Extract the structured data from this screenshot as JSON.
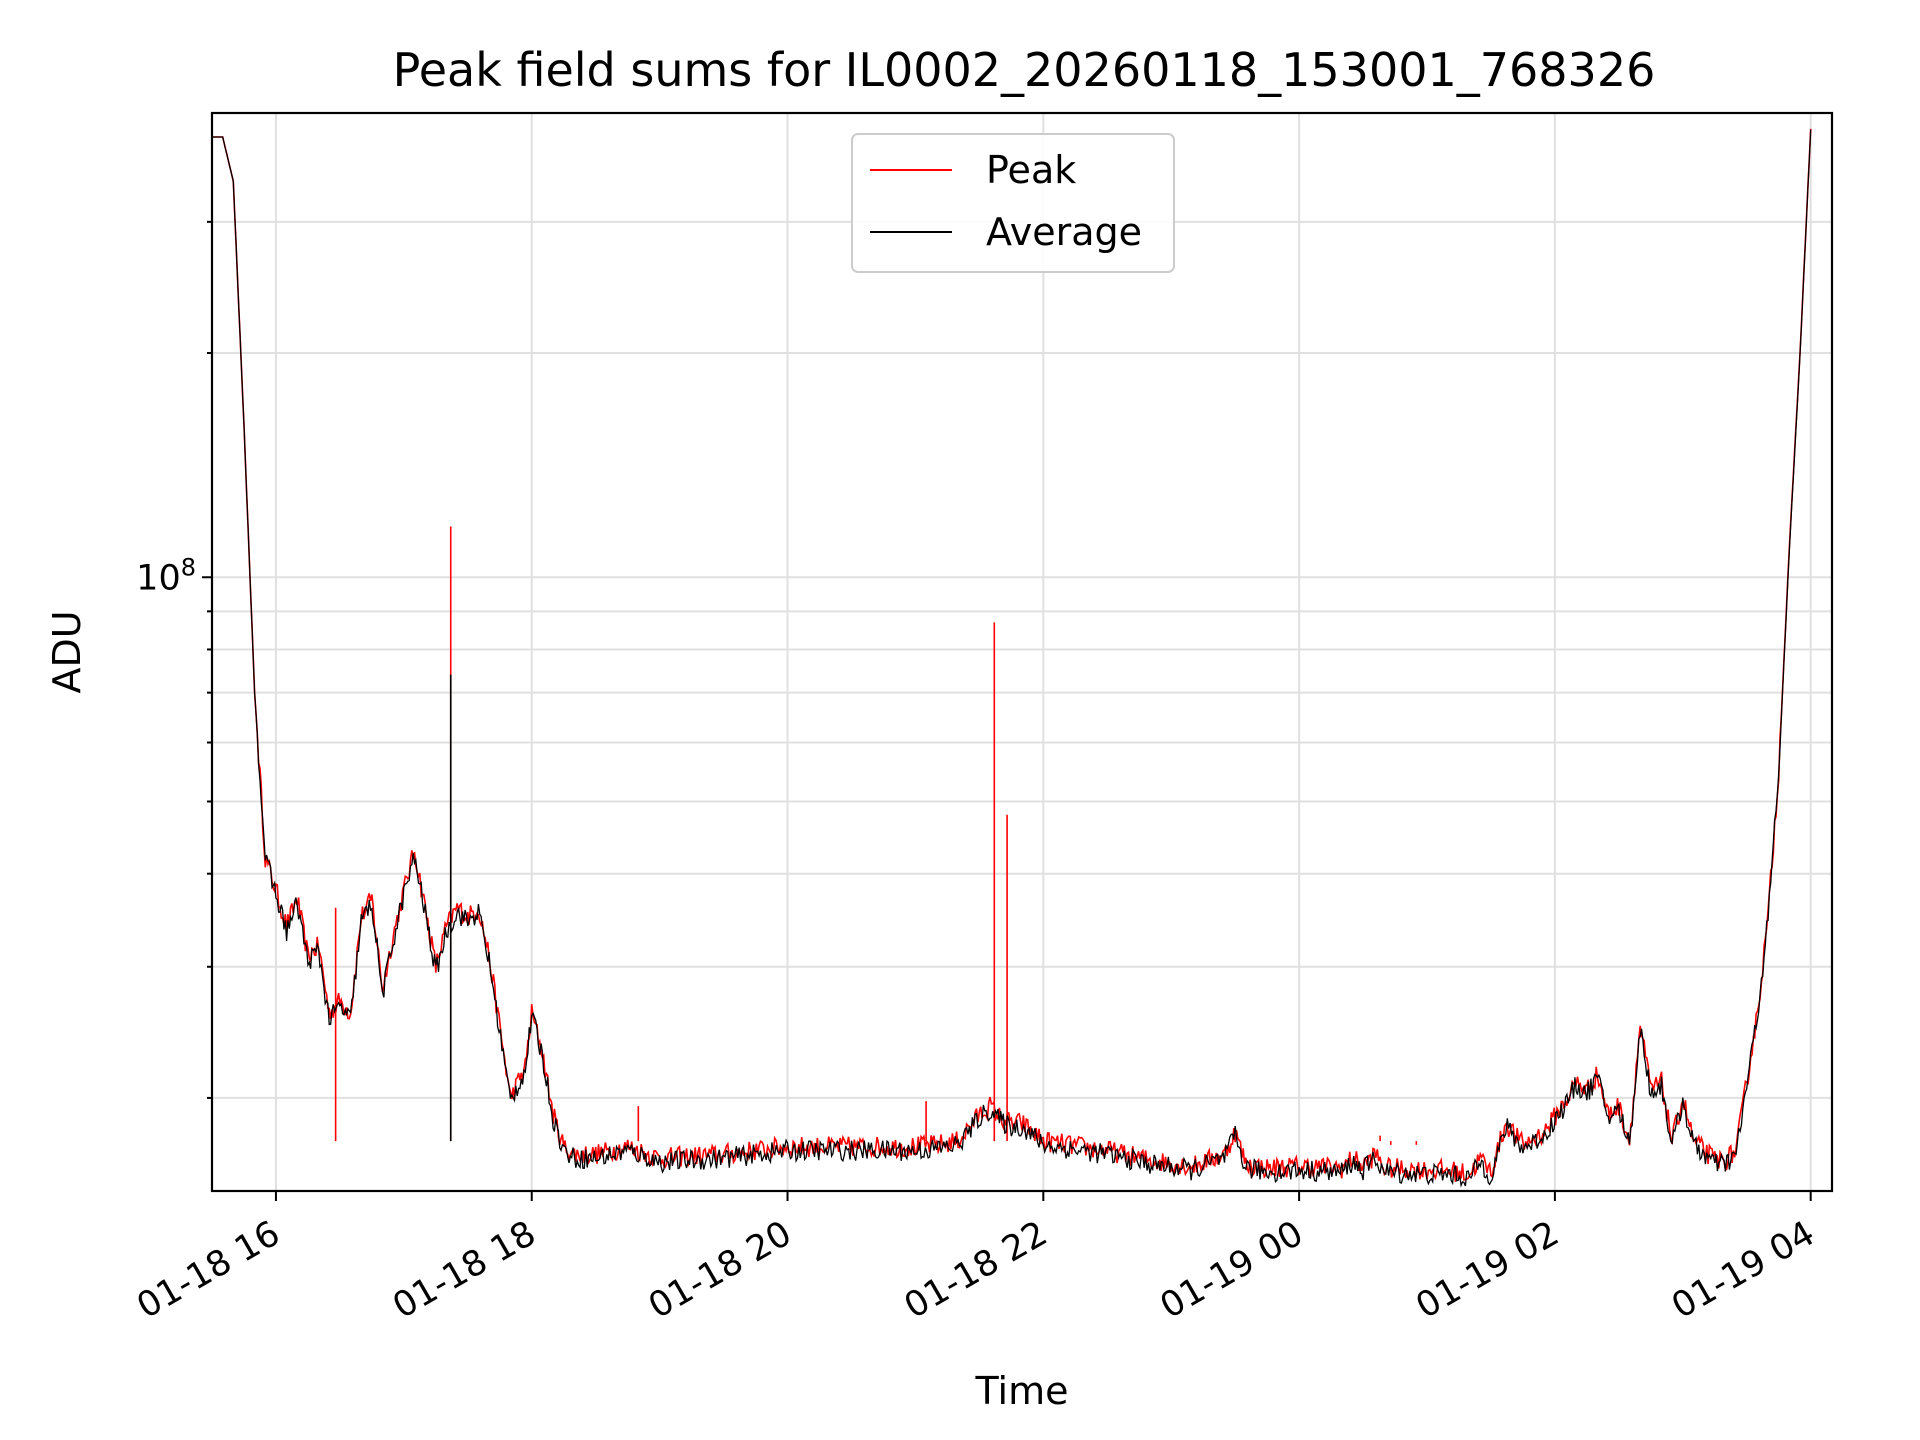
{
  "chart_data": {
    "type": "line",
    "title": "Peak field sums for IL0002_20260118_153001_768326",
    "xlabel": "Time",
    "ylabel": "ADU",
    "yscale": "log",
    "xlim": [
      "2026-01-18 15:30",
      "2026-01-19 04:10"
    ],
    "ylim": [
      15000000,
      420000000
    ],
    "grid": true,
    "legend_position": "top-center",
    "x_ticks": [
      "01-18 16",
      "01-18 18",
      "01-18 20",
      "01-18 22",
      "01-19 00",
      "01-19 02",
      "01-19 04"
    ],
    "x_tick_times": [
      "2026-01-18 16:00",
      "2026-01-18 18:00",
      "2026-01-18 20:00",
      "2026-01-18 22:00",
      "2026-01-19 00:00",
      "2026-01-19 02:00",
      "2026-01-19 04:00"
    ],
    "y_major_ticks": [
      {
        "value": 100000000,
        "label_base": "10",
        "label_exp": "8"
      }
    ],
    "y_minor_ticks": [
      20000000,
      30000000,
      40000000,
      50000000,
      60000000,
      70000000,
      80000000,
      90000000,
      200000000,
      300000000
    ],
    "x": [
      "2026-01-18 15:30",
      "2026-01-18 15:35",
      "2026-01-18 15:40",
      "2026-01-18 15:45",
      "2026-01-18 15:50",
      "2026-01-18 15:55",
      "2026-01-18 16:00",
      "2026-01-18 16:05",
      "2026-01-18 16:10",
      "2026-01-18 16:15",
      "2026-01-18 16:20",
      "2026-01-18 16:25",
      "2026-01-18 16:30",
      "2026-01-18 16:35",
      "2026-01-18 16:40",
      "2026-01-18 16:45",
      "2026-01-18 16:50",
      "2026-01-18 16:55",
      "2026-01-18 17:00",
      "2026-01-18 17:05",
      "2026-01-18 17:10",
      "2026-01-18 17:15",
      "2026-01-18 17:20",
      "2026-01-18 17:25",
      "2026-01-18 17:30",
      "2026-01-18 17:35",
      "2026-01-18 17:40",
      "2026-01-18 17:50",
      "2026-01-18 17:57",
      "2026-01-18 18:00",
      "2026-01-18 18:05",
      "2026-01-18 18:10",
      "2026-01-18 18:15",
      "2026-01-18 18:20",
      "2026-01-18 18:30",
      "2026-01-18 18:45",
      "2026-01-18 18:50",
      "2026-01-18 19:00",
      "2026-01-18 19:30",
      "2026-01-18 20:00",
      "2026-01-18 20:30",
      "2026-01-18 21:00",
      "2026-01-18 21:10",
      "2026-01-18 21:20",
      "2026-01-18 21:30",
      "2026-01-18 21:35",
      "2026-01-18 21:40",
      "2026-01-18 21:45",
      "2026-01-18 21:50",
      "2026-01-18 22:00",
      "2026-01-18 22:30",
      "2026-01-18 22:50",
      "2026-01-18 23:10",
      "2026-01-18 23:25",
      "2026-01-18 23:30",
      "2026-01-18 23:35",
      "2026-01-18 23:45",
      "2026-01-19 00:00",
      "2026-01-19 00:20",
      "2026-01-19 00:25",
      "2026-01-19 00:30",
      "2026-01-19 00:36",
      "2026-01-19 00:40",
      "2026-01-19 01:00",
      "2026-01-19 01:10",
      "2026-01-19 01:20",
      "2026-01-19 01:25",
      "2026-01-19 01:30",
      "2026-01-19 01:37",
      "2026-01-19 01:45",
      "2026-01-19 01:55",
      "2026-01-19 02:05",
      "2026-01-19 02:10",
      "2026-01-19 02:15",
      "2026-01-19 02:20",
      "2026-01-19 02:25",
      "2026-01-19 02:30",
      "2026-01-19 02:35",
      "2026-01-19 02:40",
      "2026-01-19 02:45",
      "2026-01-19 02:50",
      "2026-01-19 02:55",
      "2026-01-19 03:00",
      "2026-01-19 03:05",
      "2026-01-19 03:10",
      "2026-01-19 03:15",
      "2026-01-19 03:20",
      "2026-01-19 03:25",
      "2026-01-19 03:30",
      "2026-01-19 03:35",
      "2026-01-19 03:40",
      "2026-01-19 03:45",
      "2026-01-19 03:50",
      "2026-01-19 03:55",
      "2026-01-19 04:00"
    ],
    "series": [
      {
        "name": "Peak",
        "color": "#ff0000",
        "values": [
          390000000,
          390000000,
          340000000,
          160000000,
          70000000,
          42000000,
          38000000,
          34000000,
          37000000,
          31000000,
          32000000,
          26000000,
          27000000,
          26000000,
          35000000,
          37000000,
          28000000,
          33000000,
          38000000,
          43000000,
          36000000,
          30000000,
          34000000,
          36000000,
          35000000,
          36000000,
          31000000,
          20000000,
          22000000,
          26000000,
          23000000,
          19000000,
          17200000,
          16800000,
          16800000,
          17200000,
          17000000,
          16600000,
          16800000,
          17200000,
          17200000,
          17200000,
          17300000,
          17500000,
          19000000,
          19500000,
          18800000,
          18500000,
          18500000,
          17500000,
          17000000,
          16500000,
          16200000,
          16800000,
          18000000,
          16300000,
          16100000,
          16200000,
          16100000,
          16600000,
          16200000,
          16800000,
          16100000,
          16000000,
          16000000,
          15800000,
          16600000,
          15900000,
          18500000,
          17300000,
          18000000,
          19800000,
          21000000,
          20500000,
          21500000,
          19000000,
          19500000,
          17500000,
          25000000,
          20500000,
          21000000,
          17500000,
          20000000,
          17500000,
          17000000,
          16500000,
          16500000,
          17000000,
          21000000,
          26000000,
          35000000,
          55000000,
          110000000,
          200000000,
          400000000
        ],
        "spikes": [
          {
            "x": "2026-01-18 16:28",
            "value": 36000000
          },
          {
            "x": "2026-01-18 17:22",
            "value": 117000000
          },
          {
            "x": "2026-01-18 18:50",
            "value": 19500000
          },
          {
            "x": "2026-01-18 21:05",
            "value": 19800000
          },
          {
            "x": "2026-01-18 21:37",
            "value": 87000000
          },
          {
            "x": "2026-01-18 21:43",
            "value": 48000000
          },
          {
            "x": "2026-01-19 00:38",
            "value": 17800000
          },
          {
            "x": "2026-01-19 00:43",
            "value": 17300000
          },
          {
            "x": "2026-01-19 00:55",
            "value": 17300000
          }
        ]
      },
      {
        "name": "Average",
        "color": "#000000",
        "values": [
          390000000,
          390000000,
          340000000,
          160000000,
          70000000,
          42000000,
          37500000,
          33500000,
          36500000,
          30500000,
          31500000,
          25500000,
          26500000,
          25500000,
          34500000,
          36500000,
          27500000,
          32500000,
          37500000,
          42000000,
          35500000,
          29500000,
          33500000,
          35500000,
          34500000,
          35500000,
          30500000,
          19800000,
          21800000,
          25800000,
          22800000,
          18800000,
          17000000,
          16600000,
          16600000,
          17000000,
          16800000,
          16400000,
          16600000,
          17000000,
          17000000,
          17000000,
          17100000,
          17300000,
          18800000,
          19300000,
          18600000,
          18300000,
          18300000,
          17300000,
          16800000,
          16300000,
          16000000,
          16600000,
          17800000,
          16100000,
          15900000,
          16000000,
          15900000,
          16400000,
          16000000,
          16600000,
          15900000,
          15800000,
          15800000,
          15600000,
          16400000,
          15700000,
          18300000,
          17100000,
          17800000,
          19600000,
          20800000,
          20300000,
          21300000,
          18800000,
          19300000,
          17300000,
          24800000,
          20300000,
          20800000,
          17300000,
          19800000,
          17300000,
          16800000,
          16300000,
          16300000,
          16800000,
          20800000,
          25800000,
          34800000,
          54800000,
          109000000,
          199000000,
          399000000
        ],
        "spikes": [
          {
            "x": "2026-01-18 17:22",
            "value": 74000000
          }
        ]
      }
    ]
  }
}
